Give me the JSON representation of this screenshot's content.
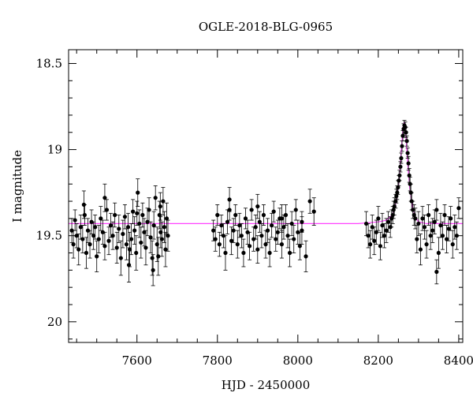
{
  "chart_data": {
    "type": "scatter",
    "title": "OGLE-2018-BLG-0965",
    "xlabel": "HJD - 2450000",
    "ylabel": "I magnitude",
    "xlim": [
      7430,
      8410
    ],
    "ylim": [
      20.12,
      18.42
    ],
    "y_inverted": true,
    "xticks": [
      "7600",
      "7800",
      "8000",
      "8200",
      "8400"
    ],
    "yticks": [
      "18.5",
      "19",
      "19.5",
      "20"
    ],
    "grid": false,
    "colors": {
      "points": "#000000",
      "model": "#ff44ff"
    },
    "baseline_magnitude": 19.43,
    "model_curve": {
      "x": [
        7430,
        8150,
        8200,
        8220,
        8235,
        8245,
        8252,
        8258,
        8262,
        8265,
        8268,
        8272,
        8278,
        8285,
        8292,
        8300,
        8320,
        8410
      ],
      "y": [
        19.43,
        19.43,
        19.42,
        19.41,
        19.38,
        19.3,
        19.17,
        18.98,
        18.86,
        18.84,
        18.9,
        19.05,
        19.22,
        19.33,
        19.39,
        19.42,
        19.43,
        19.43
      ]
    },
    "series": [
      {
        "x": [
          7438,
          7442,
          7446,
          7450,
          7455,
          7460,
          7465,
          7470,
          7474,
          7478,
          7483,
          7487,
          7492,
          7496,
          7500,
          7505,
          7510,
          7515,
          7520,
          7525,
          7530,
          7535,
          7540,
          7545,
          7550,
          7555,
          7560,
          7565,
          7570,
          7574,
          7578,
          7582,
          7586,
          7590,
          7594,
          7598,
          7602,
          7606,
          7610,
          7614,
          7618,
          7622,
          7626,
          7630,
          7634,
          7638,
          7642,
          7646,
          7650,
          7653,
          7656,
          7659,
          7662,
          7665,
          7668,
          7671,
          7674,
          7677,
          7468,
          7520,
          7580,
          7600,
          7640,
          7658,
          7790,
          7795,
          7800,
          7805,
          7810,
          7815,
          7820,
          7825,
          7830,
          7835,
          7840,
          7845,
          7850,
          7855,
          7860,
          7865,
          7870,
          7875,
          7880,
          7885,
          7890,
          7895,
          7900,
          7905,
          7910,
          7915,
          7920,
          7925,
          7930,
          7935,
          7940,
          7945,
          7950,
          7955,
          7960,
          7965,
          7970,
          7975,
          7980,
          7985,
          7990,
          7995,
          8000,
          8005,
          8010,
          8020,
          8030,
          8040,
          7830,
          7900,
          7960,
          8010,
          8170,
          8175,
          8180,
          8185,
          8190,
          8195,
          8200,
          8205,
          8210,
          8215,
          8220,
          8225,
          8230,
          8233,
          8236,
          8238,
          8240,
          8243,
          8245,
          8247,
          8249,
          8251,
          8253,
          8255,
          8257,
          8259,
          8261,
          8263,
          8265,
          8267,
          8269,
          8271,
          8273,
          8275,
          8277,
          8279,
          8281,
          8283,
          8286,
          8289,
          8292,
          8296,
          8300,
          8305,
          8310,
          8315,
          8320,
          8325,
          8330,
          8335,
          8340,
          8345,
          8350,
          8355,
          8360,
          8365,
          8370,
          8375,
          8380,
          8385,
          8390,
          8395,
          8400,
          8345
        ],
        "y": [
          19.47,
          19.55,
          19.41,
          19.5,
          19.58,
          19.45,
          19.52,
          19.38,
          19.6,
          19.47,
          19.55,
          19.42,
          19.5,
          19.45,
          19.62,
          19.52,
          19.4,
          19.48,
          19.56,
          19.35,
          19.53,
          19.44,
          19.5,
          19.38,
          19.57,
          19.46,
          19.63,
          19.49,
          19.39,
          19.55,
          19.45,
          19.58,
          19.52,
          19.36,
          19.47,
          19.6,
          19.25,
          19.43,
          19.54,
          19.38,
          19.48,
          19.57,
          19.42,
          19.35,
          19.51,
          19.63,
          19.44,
          19.28,
          19.55,
          19.62,
          19.38,
          19.48,
          19.52,
          19.3,
          19.45,
          19.58,
          19.4,
          19.5,
          19.32,
          19.28,
          19.67,
          19.37,
          19.7,
          19.33,
          19.47,
          19.52,
          19.38,
          19.55,
          19.44,
          19.5,
          19.6,
          19.42,
          19.35,
          19.53,
          19.47,
          19.38,
          19.55,
          19.44,
          19.5,
          19.6,
          19.4,
          19.48,
          19.56,
          19.35,
          19.52,
          19.45,
          19.58,
          19.42,
          19.5,
          19.38,
          19.55,
          19.47,
          19.6,
          19.44,
          19.36,
          19.52,
          19.48,
          19.4,
          19.55,
          19.45,
          19.38,
          19.5,
          19.6,
          19.43,
          19.52,
          19.35,
          19.48,
          19.56,
          19.42,
          19.62,
          19.3,
          19.36,
          19.29,
          19.33,
          19.4,
          19.47,
          19.43,
          19.5,
          19.55,
          19.45,
          19.53,
          19.48,
          19.4,
          19.56,
          19.44,
          19.5,
          19.47,
          19.42,
          19.45,
          19.4,
          19.38,
          19.35,
          19.33,
          19.3,
          19.27,
          19.25,
          19.22,
          19.18,
          19.15,
          19.1,
          19.05,
          18.98,
          18.92,
          18.88,
          18.86,
          18.87,
          18.9,
          18.95,
          19.02,
          19.08,
          19.15,
          19.2,
          19.25,
          19.3,
          19.35,
          19.38,
          19.4,
          19.52,
          19.43,
          19.58,
          19.4,
          19.45,
          19.55,
          19.38,
          19.5,
          19.47,
          19.42,
          19.35,
          19.6,
          19.44,
          19.5,
          19.38,
          19.52,
          19.46,
          19.4,
          19.55,
          19.45,
          19.5,
          19.34,
          19.71
        ],
        "yerr": [
          0.07,
          0.08,
          0.06,
          0.07,
          0.09,
          0.07,
          0.08,
          0.06,
          0.09,
          0.07,
          0.08,
          0.07,
          0.08,
          0.07,
          0.09,
          0.08,
          0.07,
          0.07,
          0.08,
          0.06,
          0.08,
          0.07,
          0.08,
          0.07,
          0.09,
          0.08,
          0.1,
          0.08,
          0.07,
          0.09,
          0.08,
          0.1,
          0.09,
          0.07,
          0.08,
          0.1,
          0.08,
          0.08,
          0.09,
          0.07,
          0.08,
          0.1,
          0.08,
          0.07,
          0.09,
          0.1,
          0.08,
          0.07,
          0.1,
          0.11,
          0.08,
          0.09,
          0.1,
          0.08,
          0.09,
          0.1,
          0.09,
          0.09,
          0.08,
          0.08,
          0.1,
          0.07,
          0.09,
          0.08,
          0.06,
          0.07,
          0.06,
          0.07,
          0.06,
          0.07,
          0.1,
          0.07,
          0.06,
          0.08,
          0.07,
          0.06,
          0.08,
          0.07,
          0.07,
          0.08,
          0.06,
          0.07,
          0.08,
          0.06,
          0.07,
          0.07,
          0.08,
          0.06,
          0.07,
          0.06,
          0.08,
          0.07,
          0.08,
          0.07,
          0.06,
          0.07,
          0.07,
          0.06,
          0.08,
          0.07,
          0.06,
          0.07,
          0.08,
          0.07,
          0.08,
          0.06,
          0.07,
          0.08,
          0.06,
          0.09,
          0.07,
          0.08,
          0.07,
          0.07,
          0.08,
          0.08,
          0.07,
          0.07,
          0.08,
          0.07,
          0.08,
          0.07,
          0.07,
          0.08,
          0.07,
          0.07,
          0.07,
          0.06,
          0.06,
          0.05,
          0.05,
          0.05,
          0.05,
          0.04,
          0.04,
          0.04,
          0.04,
          0.03,
          0.03,
          0.03,
          0.03,
          0.03,
          0.03,
          0.03,
          0.03,
          0.03,
          0.03,
          0.03,
          0.03,
          0.04,
          0.04,
          0.04,
          0.05,
          0.05,
          0.05,
          0.06,
          0.06,
          0.08,
          0.07,
          0.09,
          0.07,
          0.07,
          0.08,
          0.06,
          0.08,
          0.07,
          0.07,
          0.06,
          0.09,
          0.07,
          0.08,
          0.06,
          0.08,
          0.07,
          0.07,
          0.08,
          0.07,
          0.08,
          0.06,
          0.07
        ]
      }
    ]
  }
}
